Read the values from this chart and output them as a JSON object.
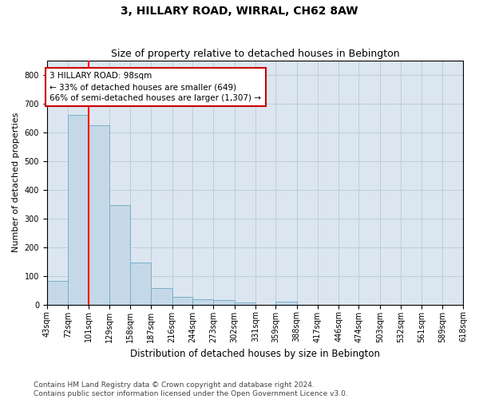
{
  "title": "3, HILLARY ROAD, WIRRAL, CH62 8AW",
  "subtitle": "Size of property relative to detached houses in Bebington",
  "xlabel": "Distribution of detached houses by size in Bebington",
  "ylabel": "Number of detached properties",
  "bar_color": "#c5d8e8",
  "bar_edge_color": "#7aafc8",
  "property_line_x": 101,
  "annotation_text": "3 HILLARY ROAD: 98sqm\n← 33% of detached houses are smaller (649)\n66% of semi-detached houses are larger (1,307) →",
  "footer_line1": "Contains HM Land Registry data © Crown copyright and database right 2024.",
  "footer_line2": "Contains public sector information licensed under the Open Government Licence v3.0.",
  "bin_edges": [
    43,
    72,
    101,
    129,
    158,
    187,
    216,
    244,
    273,
    302,
    331,
    359,
    388,
    417,
    446,
    474,
    503,
    532,
    561,
    589,
    618
  ],
  "bin_labels": [
    "43sqm",
    "72sqm",
    "101sqm",
    "129sqm",
    "158sqm",
    "187sqm",
    "216sqm",
    "244sqm",
    "273sqm",
    "302sqm",
    "331sqm",
    "359sqm",
    "388sqm",
    "417sqm",
    "446sqm",
    "474sqm",
    "503sqm",
    "532sqm",
    "561sqm",
    "589sqm",
    "618sqm"
  ],
  "counts": [
    83,
    660,
    625,
    347,
    145,
    58,
    26,
    19,
    15,
    7,
    0,
    10,
    0,
    0,
    0,
    0,
    0,
    0,
    0,
    0
  ],
  "ylim": [
    0,
    850
  ],
  "yticks": [
    0,
    100,
    200,
    300,
    400,
    500,
    600,
    700,
    800
  ],
  "background_color": "#ffffff",
  "plot_bg_color": "#dce6f0",
  "grid_color": "#b8c8d8",
  "annotation_box_facecolor": "#ffffff",
  "annotation_box_edgecolor": "#cc0000",
  "title_fontsize": 10,
  "subtitle_fontsize": 9,
  "ylabel_fontsize": 8,
  "xlabel_fontsize": 8.5,
  "tick_fontsize": 7,
  "annotation_fontsize": 7.5,
  "footer_fontsize": 6.5
}
